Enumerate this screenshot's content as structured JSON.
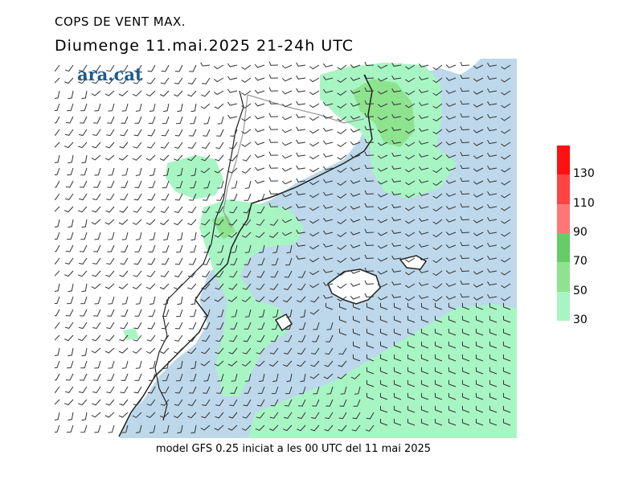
{
  "header": {
    "title": "COPS DE VENT MAX.",
    "subtitle": "Diumenge  11.mai.2025 21-24h UTC",
    "logo": "ara.cat"
  },
  "footer": {
    "model_text": "model GFS 0.25 iniciat a les 00 UTC del 11 mai 2025"
  },
  "legend": {
    "ticks": [
      "30",
      "50",
      "70",
      "90",
      "110",
      "130"
    ],
    "colors": [
      "#a8f5c4",
      "#8ee38f",
      "#66cc66",
      "#ff7777",
      "#ff4444",
      "#ff1111"
    ]
  },
  "map_colors": {
    "land": "#ffffff",
    "sea": "#bcd8ea",
    "wind_30_50": "#a8f5c4",
    "wind_50_70": "#8ee38f",
    "wind_70_90": "#66cc66"
  }
}
